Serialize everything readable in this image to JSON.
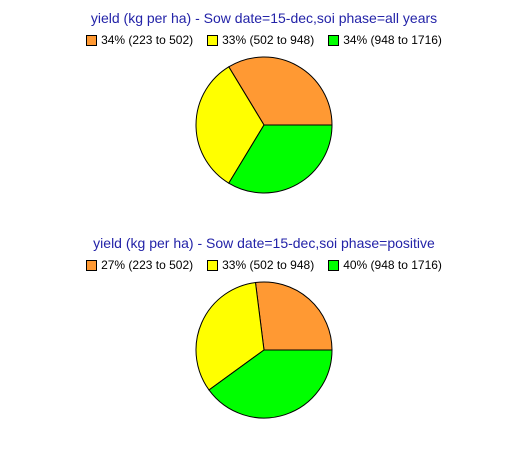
{
  "chart_data": [
    {
      "type": "pie",
      "title": "yield (kg per ha) - Sow date=15-dec,soi phase=all years",
      "series": [
        {
          "name": "34% (223 to 502)",
          "value": 34,
          "color": "#ff9933"
        },
        {
          "name": "33% (502 to 948)",
          "value": 33,
          "color": "#ffff00"
        },
        {
          "name": "34% (948 to 1716)",
          "value": 34,
          "color": "#00ff00"
        }
      ],
      "legend": "top",
      "start_angle_deg": 0,
      "direction": "counterclockwise"
    },
    {
      "type": "pie",
      "title": "yield (kg per ha) - Sow date=15-dec,soi phase=positive",
      "series": [
        {
          "name": "27% (223 to 502)",
          "value": 27,
          "color": "#ff9933"
        },
        {
          "name": "33% (502 to 948)",
          "value": 33,
          "color": "#ffff00"
        },
        {
          "name": "40% (948 to 1716)",
          "value": 40,
          "color": "#00ff00"
        }
      ],
      "legend": "top",
      "start_angle_deg": 0,
      "direction": "counterclockwise"
    }
  ]
}
